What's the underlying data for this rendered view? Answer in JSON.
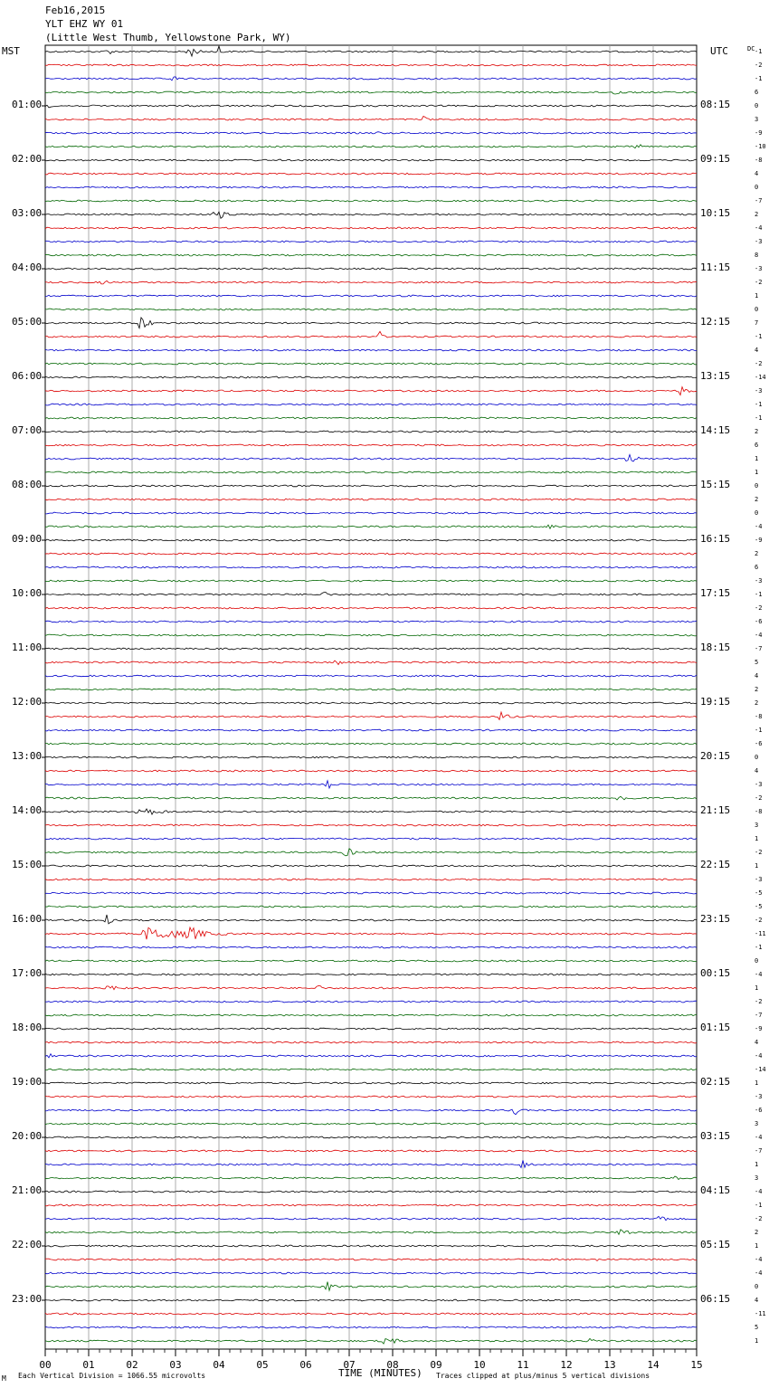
{
  "header": {
    "date": "Feb16,2015",
    "station": "YLT EHZ WY 01",
    "location": "(Little West Thumb, Yellowstone Park, WY)"
  },
  "left_tz": "MST",
  "right_tz": "UTC",
  "dc_label": "DC",
  "footer": {
    "scale_note": "Each Vertical Division = 1066.55 microvolts",
    "xlabel": "TIME (MINUTES)",
    "clip_note": "Traces clipped at plus/minus 5 vertical divisions",
    "corner_mark": "M"
  },
  "colors": {
    "trace_cycle": [
      "#000000",
      "#dd0000",
      "#0000cc",
      "#006600"
    ],
    "grid": "#999999"
  },
  "chart_data": {
    "type": "line",
    "xlabel": "TIME (MINUTES)",
    "xlim": [
      0,
      15
    ],
    "x_tick_labels": [
      "00",
      "01",
      "02",
      "03",
      "04",
      "05",
      "06",
      "07",
      "08",
      "09",
      "10",
      "11",
      "12",
      "13",
      "14",
      "15"
    ],
    "rows_per_hour": 4,
    "minutes_per_row": 15,
    "left_hour_labels": [
      "01:00",
      "02:00",
      "03:00",
      "04:00",
      "05:00",
      "06:00",
      "07:00",
      "08:00",
      "09:00",
      "10:00",
      "11:00",
      "12:00",
      "13:00",
      "14:00",
      "15:00",
      "16:00",
      "17:00",
      "18:00",
      "19:00",
      "20:00",
      "21:00",
      "22:00",
      "23:00"
    ],
    "right_hour_labels": [
      "08:15",
      "09:15",
      "10:15",
      "11:15",
      "12:15",
      "13:15",
      "14:15",
      "15:15",
      "16:15",
      "17:15",
      "18:15",
      "19:15",
      "20:15",
      "21:15",
      "22:15",
      "23:15",
      "00:15",
      "01:15",
      "02:15",
      "03:15",
      "04:15",
      "05:15",
      "06:15"
    ],
    "dc_offsets": [
      -1,
      -2,
      -1,
      6,
      0,
      3,
      -9,
      -10,
      -8,
      4,
      0,
      -7,
      2,
      -4,
      -3,
      8,
      -3,
      -2,
      1,
      0,
      7,
      -1,
      4,
      -2,
      -14,
      -3,
      -1,
      -1,
      2,
      6,
      1,
      1,
      0,
      2,
      0,
      -4,
      -9,
      2,
      6,
      -3,
      -1,
      -2,
      -6,
      -4,
      -7,
      5,
      4,
      2,
      2,
      -8,
      -1,
      -6,
      0,
      4,
      -3,
      -2,
      -8,
      3,
      1,
      -2,
      1,
      -3,
      -5,
      -5,
      -2,
      -11,
      -1,
      0,
      -4,
      1,
      -2,
      -7,
      -9,
      4,
      -4,
      -14,
      1,
      -3,
      -6,
      3,
      -4,
      -7,
      1,
      3,
      -4,
      -1,
      -2,
      2,
      1,
      -4,
      -4,
      0,
      4,
      -11,
      5,
      1
    ],
    "events": [
      {
        "row": 0,
        "minute": 1.4,
        "amp": 5,
        "dur": 0.4
      },
      {
        "row": 0,
        "minute": 3.3,
        "amp": 9,
        "dur": 0.4
      },
      {
        "row": 0,
        "minute": 4.0,
        "amp": 10,
        "dur": 0.15
      },
      {
        "row": 2,
        "minute": 2.9,
        "amp": 6,
        "dur": 0.3
      },
      {
        "row": 3,
        "minute": 13.1,
        "amp": 4,
        "dur": 0.6
      },
      {
        "row": 4,
        "minute": 0.05,
        "amp": 5,
        "dur": 0.15
      },
      {
        "row": 5,
        "minute": 8.7,
        "amp": 5,
        "dur": 0.3
      },
      {
        "row": 6,
        "minute": 7.6,
        "amp": 3,
        "dur": 0.3
      },
      {
        "row": 7,
        "minute": 13.6,
        "amp": 8,
        "dur": 0.3
      },
      {
        "row": 12,
        "minute": 3.9,
        "amp": 9,
        "dur": 0.5
      },
      {
        "row": 17,
        "minute": 1.3,
        "amp": 6,
        "dur": 0.3
      },
      {
        "row": 20,
        "minute": 2.2,
        "amp": 12,
        "dur": 0.4
      },
      {
        "row": 21,
        "minute": 7.7,
        "amp": 8,
        "dur": 0.15
      },
      {
        "row": 25,
        "minute": 14.6,
        "amp": 8,
        "dur": 0.4
      },
      {
        "row": 26,
        "minute": 0.0,
        "amp": 4,
        "dur": 0.1
      },
      {
        "row": 30,
        "minute": 13.4,
        "amp": 7,
        "dur": 0.5
      },
      {
        "row": 35,
        "minute": 11.6,
        "amp": 5,
        "dur": 0.4
      },
      {
        "row": 40,
        "minute": 6.3,
        "amp": 8,
        "dur": 0.4
      },
      {
        "row": 45,
        "minute": 6.7,
        "amp": 5,
        "dur": 0.3
      },
      {
        "row": 49,
        "minute": 10.5,
        "amp": 7,
        "dur": 0.4
      },
      {
        "row": 54,
        "minute": 6.5,
        "amp": 7,
        "dur": 0.4
      },
      {
        "row": 55,
        "minute": 13.2,
        "amp": 5,
        "dur": 0.8
      },
      {
        "row": 56,
        "minute": 2.1,
        "amp": 7,
        "dur": 1.2
      },
      {
        "row": 59,
        "minute": 6.9,
        "amp": 7,
        "dur": 0.5
      },
      {
        "row": 64,
        "minute": 1.4,
        "amp": 10,
        "dur": 0.4
      },
      {
        "row": 65,
        "minute": 2.3,
        "amp": 9,
        "dur": 2.5
      },
      {
        "row": 65,
        "minute": 3.3,
        "amp": 10,
        "dur": 0.8
      },
      {
        "row": 69,
        "minute": 1.4,
        "amp": 4,
        "dur": 1.0
      },
      {
        "row": 69,
        "minute": 6.2,
        "amp": 9,
        "dur": 0.3
      },
      {
        "row": 74,
        "minute": 0.1,
        "amp": 4,
        "dur": 0.5
      },
      {
        "row": 78,
        "minute": 10.8,
        "amp": 8,
        "dur": 0.2
      },
      {
        "row": 82,
        "minute": 11.0,
        "amp": 8,
        "dur": 0.3
      },
      {
        "row": 83,
        "minute": 14.5,
        "amp": 4,
        "dur": 0.3
      },
      {
        "row": 86,
        "minute": 14.1,
        "amp": 10,
        "dur": 0.3
      },
      {
        "row": 87,
        "minute": 13.2,
        "amp": 5,
        "dur": 0.8
      },
      {
        "row": 89,
        "minute": 12.7,
        "amp": 4,
        "dur": 0.1
      },
      {
        "row": 91,
        "minute": 6.5,
        "amp": 8,
        "dur": 0.3
      },
      {
        "row": 95,
        "minute": 7.8,
        "amp": 7,
        "dur": 0.6
      },
      {
        "row": 95,
        "minute": 12.5,
        "amp": 4,
        "dur": 0.3
      }
    ]
  }
}
